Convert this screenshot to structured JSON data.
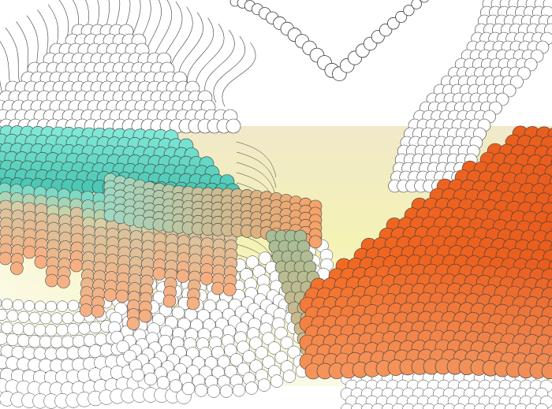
{
  "artwork": {
    "caption": "",
    "palette": {
      "background": "#ffffff",
      "band_top": "#efe6c4",
      "band_mid": "#f3f0a8",
      "band_bottom": "#f8f6d6",
      "turquoise": "#5ad9c6",
      "peach": "#f4b184",
      "orange": "#f36a22",
      "orange_dark": "#e2531a",
      "sage": "#9fb48e",
      "stroke": "#3a3a3a",
      "outline": "#ffffff"
    },
    "motifs": [
      "circle-chain",
      "scale-field",
      "comb-lines"
    ]
  }
}
